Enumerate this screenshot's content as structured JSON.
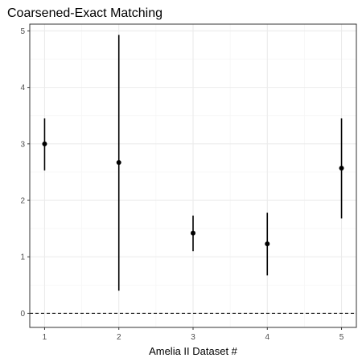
{
  "chart_data": {
    "type": "scatter",
    "title": "Coarsened-Exact Matching",
    "xlabel": "Amelia II Dataset #",
    "ylabel": "",
    "x": [
      1,
      2,
      3,
      4,
      5
    ],
    "y": [
      3.0,
      2.67,
      1.42,
      1.23,
      2.57
    ],
    "y_lower": [
      2.53,
      0.4,
      1.1,
      0.67,
      1.68
    ],
    "y_upper": [
      3.45,
      4.93,
      1.73,
      1.78,
      3.45
    ],
    "x_ticks": [
      "1",
      "2",
      "3",
      "4",
      "5"
    ],
    "y_ticks": [
      "0",
      "1",
      "2",
      "3",
      "4",
      "5"
    ],
    "xlim": [
      0.8,
      5.2
    ],
    "ylim": [
      -0.25,
      5.12
    ],
    "reference_line": {
      "y": 0,
      "style": "dashed"
    },
    "grid": true,
    "legend": "none",
    "colors": {
      "point": "#000000",
      "errorbar": "#000000",
      "grid_major": "#ebebeb",
      "grid_minor": "#f5f5f5",
      "panel_border": "#333333",
      "tick_label": "#4d4d4d"
    }
  }
}
